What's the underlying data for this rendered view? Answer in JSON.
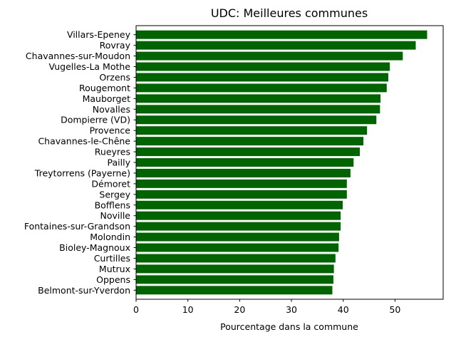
{
  "chart_data": {
    "type": "bar",
    "orientation": "horizontal",
    "title": "UDC: Meilleures communes",
    "xlabel": "Pourcentage dans la commune",
    "ylabel": "",
    "xlim": [
      0,
      59.3
    ],
    "xticks": [
      0,
      10,
      20,
      30,
      40,
      50
    ],
    "bar_color": "#006400",
    "grid": false,
    "categories": [
      "Villars-Epeney",
      "Rovray",
      "Chavannes-sur-Moudon",
      "Vugelles-La Mothe",
      "Orzens",
      "Rougemont",
      "Mauborget",
      "Novalles",
      "Dompierre (VD)",
      "Provence",
      "Chavannes-le-Chêne",
      "Rueyres",
      "Pailly",
      "Treytorrens (Payerne)",
      "Démoret",
      "Sergey",
      "Bofflens",
      "Noville",
      "Fontaines-sur-Grandson",
      "Molondin",
      "Bioley-Magnoux",
      "Curtilles",
      "Mutrux",
      "Oppens",
      "Belmont-sur-Yverdon"
    ],
    "values": [
      56.2,
      54.0,
      51.5,
      49.0,
      48.7,
      48.4,
      47.2,
      47.1,
      46.4,
      44.6,
      43.9,
      43.2,
      42.0,
      41.4,
      40.7,
      40.7,
      39.9,
      39.5,
      39.5,
      39.2,
      39.1,
      38.5,
      38.2,
      38.1,
      37.9
    ]
  }
}
